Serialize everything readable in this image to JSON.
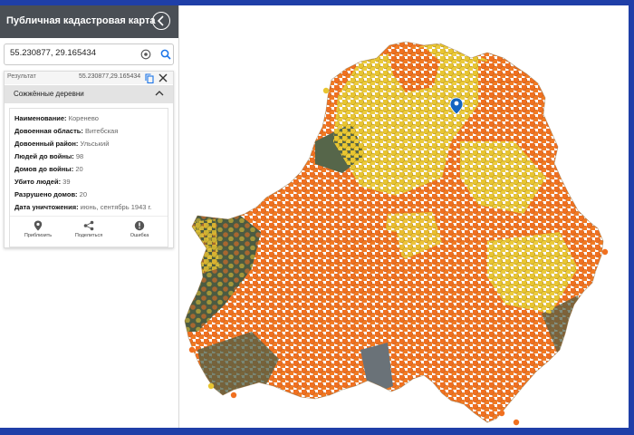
{
  "panel": {
    "title": "Публичная кадастровая карта",
    "collapse_icon": "chevron-left-icon"
  },
  "search": {
    "value": "55.230877, 29.165434",
    "target_icon": "target-icon",
    "search_icon": "search-icon"
  },
  "result": {
    "label": "Результат",
    "value": "55.230877,29.165434",
    "copy_icon": "copy-icon",
    "close_icon": "close-icon"
  },
  "section": {
    "title": "Сожжённые деревни",
    "chevron_icon": "chevron-up-icon"
  },
  "info": [
    {
      "label": "Наименование:",
      "value": "Коренево"
    },
    {
      "label": "Довоенная область:",
      "value": "Витебская"
    },
    {
      "label": "Довоенный район:",
      "value": "Ульський"
    },
    {
      "label": "Людей до войны:",
      "value": "98"
    },
    {
      "label": "Домов до войны:",
      "value": "20"
    },
    {
      "label": "Убито людей:",
      "value": "39"
    },
    {
      "label": "Разрушено домов:",
      "value": "20"
    },
    {
      "label": "Дата уничтожения:",
      "value": "июнь, сентябрь 1943 г."
    }
  ],
  "actions": [
    {
      "label": "Приблизить",
      "icon": "location-pin-icon"
    },
    {
      "label": "Поделиться",
      "icon": "share-icon"
    },
    {
      "label": "Ошибка",
      "icon": "error-icon"
    }
  ],
  "map": {
    "colors": {
      "frame": "#1f3fa8",
      "orange_marker": "#f07020",
      "yellow_marker": "#e8c531",
      "terrain": "#4a5a40",
      "selected_pin": "#1565c0"
    },
    "selected_pin_icon": "map-pin-icon"
  }
}
